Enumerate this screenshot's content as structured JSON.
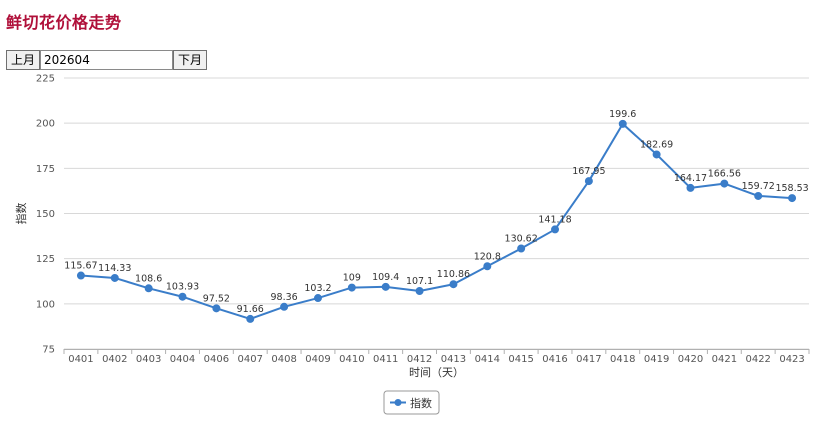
{
  "header": {
    "title": "鲜切花价格走势"
  },
  "controls": {
    "prev_label": "上月",
    "month_value": "202604",
    "next_label": "下月"
  },
  "colors": {
    "title": "#b0103a",
    "series": "#3a7dc9",
    "grid": "#d8d8d8"
  },
  "chart_data": {
    "type": "line",
    "title": "",
    "xlabel": "时间（天）",
    "ylabel": "指数",
    "ylim": [
      75,
      225
    ],
    "yticks": [
      75,
      100,
      125,
      150,
      175,
      200,
      225
    ],
    "grid": true,
    "legend_position": "bottom-center",
    "categories": [
      "0401",
      "0402",
      "0403",
      "0404",
      "0406",
      "0407",
      "0408",
      "0409",
      "0410",
      "0411",
      "0412",
      "0413",
      "0414",
      "0415",
      "0416",
      "0417",
      "0418",
      "0419",
      "0420",
      "0421",
      "0422",
      "0423"
    ],
    "series": [
      {
        "name": "指数",
        "values": [
          115.67,
          114.33,
          108.6,
          103.93,
          97.52,
          91.66,
          98.36,
          103.2,
          109,
          109.4,
          107.1,
          110.86,
          120.8,
          130.62,
          141.18,
          167.95,
          199.6,
          182.69,
          164.17,
          166.56,
          159.72,
          158.53
        ],
        "labels": [
          "115.67",
          "114.33",
          "108.6",
          "103.93",
          "97.52",
          "91.66",
          "98.36",
          "103.2",
          "109",
          "109.4",
          "107.1",
          "110.86",
          "120.8",
          "130.62",
          "141.18",
          "167.95",
          "199.6",
          "182.69",
          "164.17",
          "166.56",
          "159.72",
          "158.53"
        ]
      }
    ]
  }
}
